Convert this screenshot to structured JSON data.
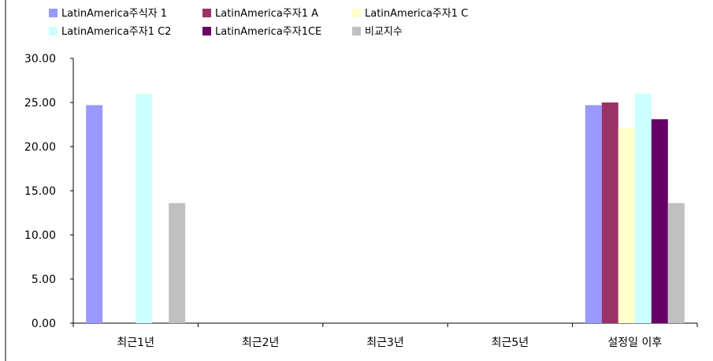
{
  "chart_data": {
    "type": "bar",
    "categories": [
      "최근1년",
      "최근2년",
      "최근3년",
      "최근5년",
      "설정일 이후"
    ],
    "series": [
      {
        "name": "LatinAmerica주식자 1",
        "color": "#9999ff",
        "values": [
          24.7,
          null,
          null,
          null,
          24.7
        ]
      },
      {
        "name": "LatinAmerica주자1 A",
        "color": "#993366",
        "values": [
          null,
          null,
          null,
          null,
          25.0
        ]
      },
      {
        "name": "LatinAmerica주자1 C",
        "color": "#ffffcc",
        "values": [
          null,
          null,
          null,
          null,
          22.1
        ]
      },
      {
        "name": "LatinAmerica주자1 C2",
        "color": "#ccffff",
        "values": [
          26.0,
          null,
          null,
          null,
          26.0
        ]
      },
      {
        "name": "LatinAmerica주자1CE",
        "color": "#660066",
        "values": [
          null,
          null,
          null,
          null,
          23.1
        ]
      },
      {
        "name": "비교지수",
        "color": "#c0c0c0",
        "values": [
          13.6,
          null,
          null,
          null,
          13.6
        ]
      }
    ],
    "yticks": [
      "0.00",
      "5.00",
      "10.00",
      "15.00",
      "20.00",
      "25.00",
      "30.00"
    ],
    "ylim": [
      0,
      30
    ],
    "grid": false,
    "legend_position": "top-left"
  }
}
